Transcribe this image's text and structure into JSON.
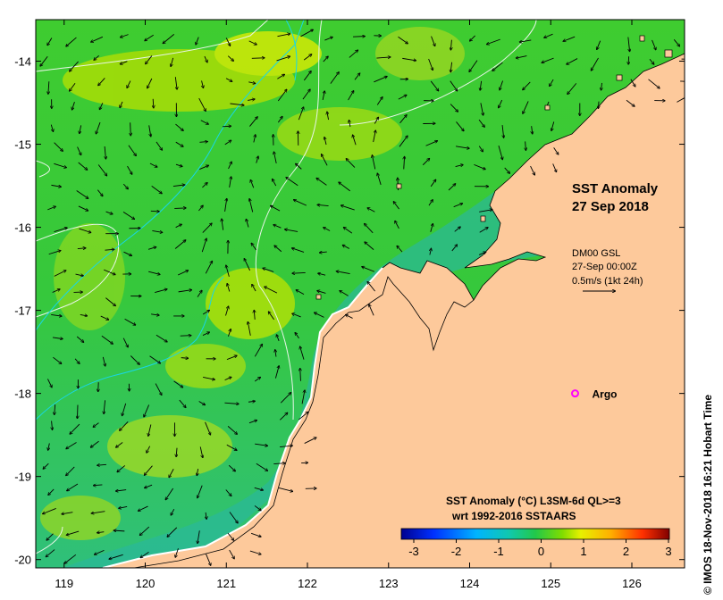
{
  "map": {
    "title": "SST Anomaly",
    "date": "27 Sep 2018",
    "current_source": "DM00 GSL",
    "current_time": "27-Sep 00:00Z",
    "vector_scale": "0.5m/s (1kt 24h)",
    "marker_label": "Argo",
    "marker_color": "#ff00ff",
    "land_color": "#fdc99b",
    "lon_ticks": [
      "119",
      "120",
      "121",
      "122",
      "123",
      "124",
      "125",
      "126"
    ],
    "lat_ticks": [
      "-14",
      "-15",
      "-16",
      "-17",
      "-18",
      "-19",
      "-20"
    ],
    "extent": {
      "lon_min": 118.65,
      "lon_max": 126.65,
      "lat_min": -20.1,
      "lat_max": -13.5
    },
    "argo_position": {
      "lon": 125.3,
      "lat": -18.0
    }
  },
  "legend": {
    "title_line1": "SST Anomaly (°C) L3SM-6d QL>=3",
    "title_line2": "wrt 1992-2016 SSTAARS",
    "ticks": [
      "-3",
      "-2",
      "-1",
      "0",
      "1",
      "2",
      "3"
    ],
    "colors": [
      "#00008f",
      "#0040ff",
      "#00bfff",
      "#22c7a8",
      "#2ecc40",
      "#b0e000",
      "#ffff00",
      "#ffa500",
      "#ff4000",
      "#800000"
    ]
  },
  "credit": "© IMOS 18-Nov-2018 16:21 Hobart Time"
}
